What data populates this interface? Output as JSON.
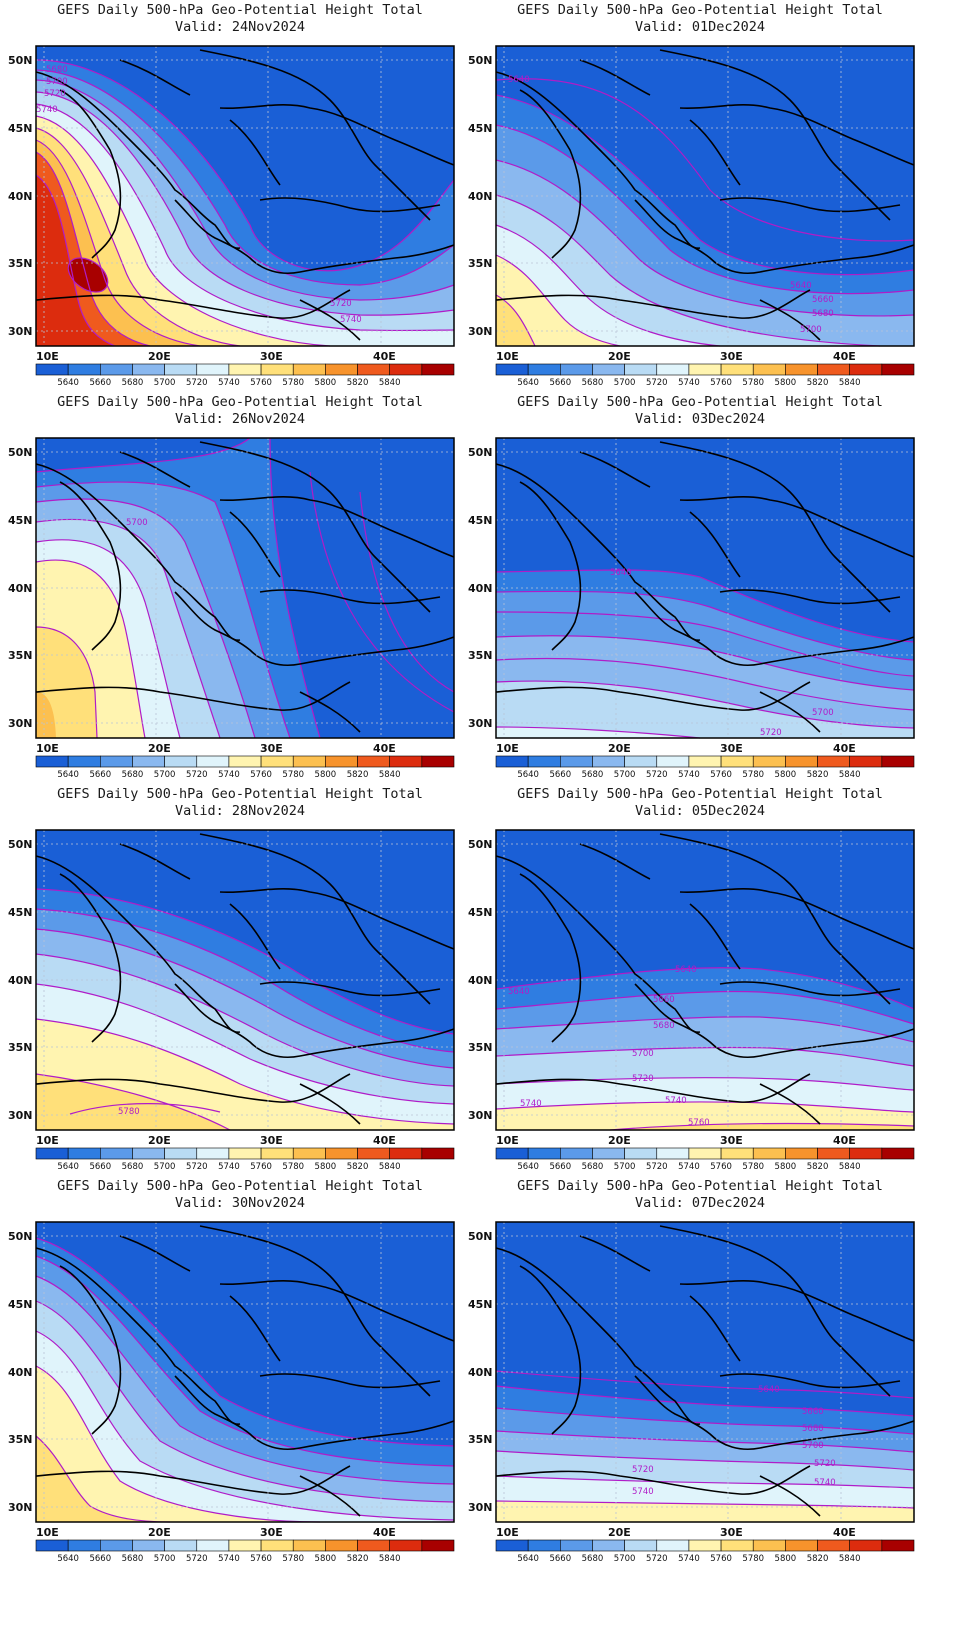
{
  "title": "GEFS Daily 500-hPa Geo-Potential Height Total",
  "valid_prefix": "Valid:",
  "lat_labels": [
    "50N",
    "45N",
    "40N",
    "35N",
    "30N"
  ],
  "lon_labels": [
    "10E",
    "20E",
    "30E",
    "40E"
  ],
  "colorbar": {
    "labels": [
      "5640",
      "5660",
      "5680",
      "5700",
      "5720",
      "5740",
      "5760",
      "5780",
      "5800",
      "5820",
      "5840"
    ],
    "colors": [
      "#1a5fd6",
      "#2f7de1",
      "#5b9ae9",
      "#8ab8ef",
      "#b9dbf4",
      "#e0f4fb",
      "#fff4b0",
      "#ffe07a",
      "#fcc050",
      "#f7932c",
      "#ef5a1e",
      "#dc2c0e",
      "#a80000"
    ]
  },
  "panels": [
    {
      "valid": "24Nov2024",
      "labels": [
        "5680",
        "5700",
        "5720",
        "5740",
        "5720",
        "5740"
      ]
    },
    {
      "valid": "01Dec2024",
      "labels": [
        "5640",
        "5640",
        "5660",
        "5680",
        "5700"
      ]
    },
    {
      "valid": "26Nov2024",
      "labels": [
        "5700"
      ]
    },
    {
      "valid": "03Dec2024",
      "labels": [
        "5640",
        "5700",
        "5720"
      ]
    },
    {
      "valid": "28Nov2024",
      "labels": [
        "5780"
      ]
    },
    {
      "valid": "05Dec2024",
      "labels": [
        "5640",
        "5640",
        "5660",
        "5680",
        "5700",
        "5720",
        "5740",
        "5740",
        "5760"
      ]
    },
    {
      "valid": "30Nov2024",
      "labels": []
    },
    {
      "valid": "07Dec2024",
      "labels": [
        "5640",
        "5660",
        "5680",
        "5700",
        "5720",
        "5740",
        "5720",
        "5740"
      ]
    }
  ]
}
